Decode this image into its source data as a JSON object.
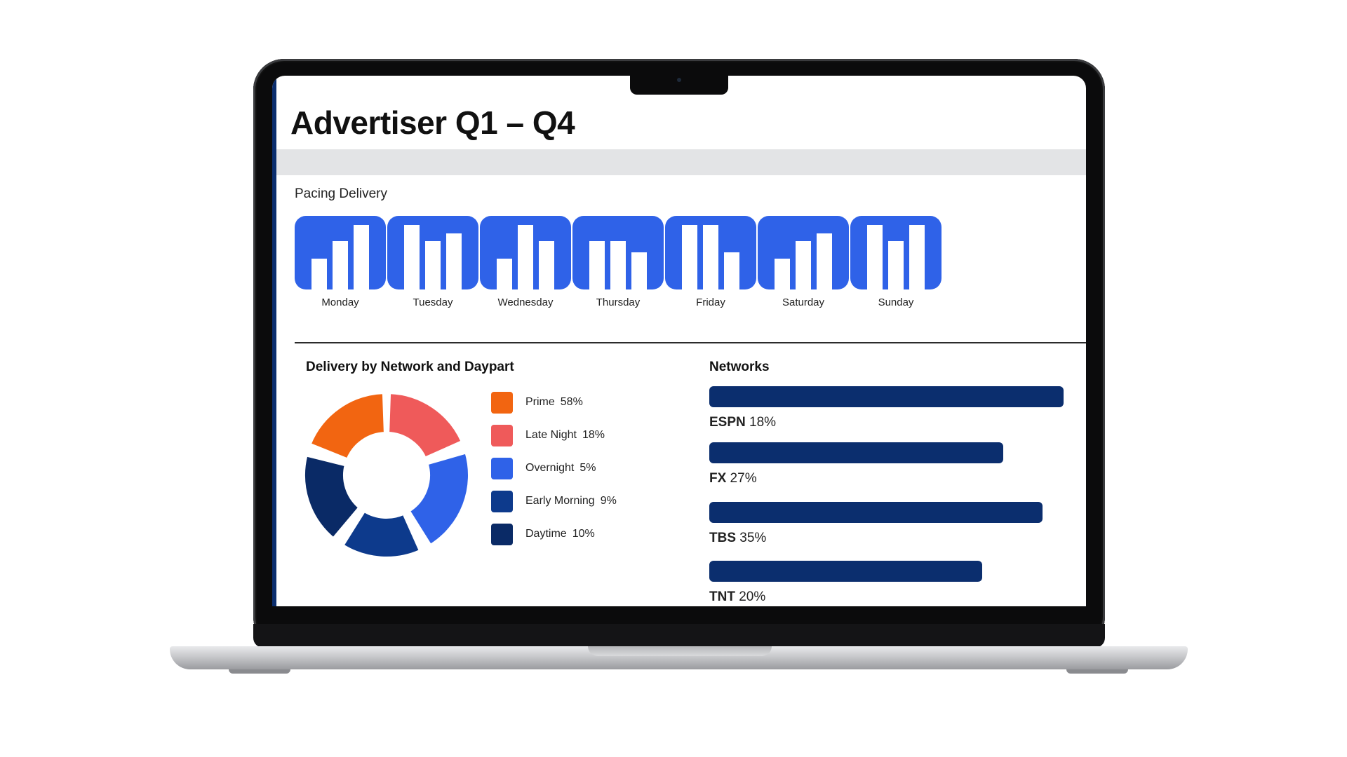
{
  "dashboard": {
    "title": "Advertiser Q1 – Q4",
    "pacing_label": "Pacing Delivery",
    "days": [
      {
        "label": "Monday",
        "levels": [
          0.42,
          0.66,
          0.88
        ]
      },
      {
        "label": "Tuesday",
        "levels": [
          0.88,
          0.66,
          0.76
        ]
      },
      {
        "label": "Wednesday",
        "levels": [
          0.42,
          0.88,
          0.66
        ]
      },
      {
        "label": "Thursday",
        "levels": [
          0.66,
          0.66,
          0.5
        ]
      },
      {
        "label": "Friday",
        "levels": [
          0.88,
          0.88,
          0.5
        ]
      },
      {
        "label": "Saturday",
        "levels": [
          0.42,
          0.66,
          0.76
        ]
      },
      {
        "label": "Sunday",
        "levels": [
          0.88,
          0.66,
          0.88
        ]
      }
    ]
  },
  "daypart": {
    "title": "Delivery by Network and Daypart",
    "legend": [
      {
        "name": "Prime",
        "pct": "58%",
        "color": "#f26511"
      },
      {
        "name": "Late Night",
        "pct": "18%",
        "color": "#ef5a5a"
      },
      {
        "name": "Overnight",
        "pct": "5%",
        "color": "#2f62e8"
      },
      {
        "name": "Early Morning",
        "pct": "9%",
        "color": "#0d3a8c"
      },
      {
        "name": "Daytime",
        "pct": "10%",
        "color": "#0a2a66"
      }
    ]
  },
  "networks": {
    "title": "Networks",
    "items": [
      {
        "name": "ESPN",
        "pct": "18%",
        "bar": 1.0
      },
      {
        "name": "FX",
        "pct": "27%",
        "bar": 0.83
      },
      {
        "name": "TBS",
        "pct": "35%",
        "bar": 0.94
      },
      {
        "name": "TNT",
        "pct": "20%",
        "bar": 0.77
      }
    ]
  },
  "chart_data": {
    "type": "pie",
    "categories": [
      "Prime",
      "Late Night",
      "Overnight",
      "Early Morning",
      "Daytime"
    ],
    "values": [
      58,
      18,
      5,
      9,
      10
    ],
    "title": "Delivery by Network and Daypart"
  }
}
